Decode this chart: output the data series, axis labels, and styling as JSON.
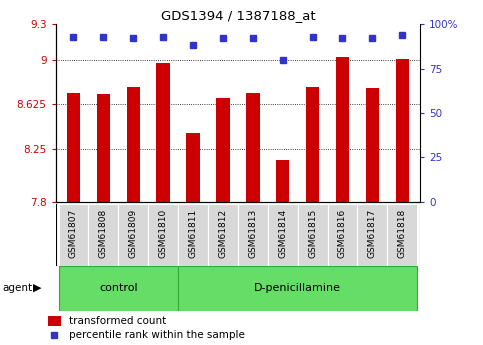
{
  "title": "GDS1394 / 1387188_at",
  "samples": [
    "GSM61807",
    "GSM61808",
    "GSM61809",
    "GSM61810",
    "GSM61811",
    "GSM61812",
    "GSM61813",
    "GSM61814",
    "GSM61815",
    "GSM61816",
    "GSM61817",
    "GSM61818"
  ],
  "bar_values": [
    8.72,
    8.71,
    8.77,
    8.97,
    8.38,
    8.68,
    8.72,
    8.15,
    8.77,
    9.02,
    8.76,
    9.01
  ],
  "percentile_values": [
    93,
    93,
    92,
    93,
    88,
    92,
    92,
    80,
    93,
    92,
    92,
    94
  ],
  "ylim_left": [
    7.8,
    9.3
  ],
  "ylim_right": [
    0,
    100
  ],
  "yticks_left": [
    7.8,
    8.25,
    8.625,
    9.0,
    9.3
  ],
  "ytick_labels_left": [
    "7.8",
    "8.25",
    "8.625",
    "9",
    "9.3"
  ],
  "yticks_right": [
    0,
    25,
    50,
    75,
    100
  ],
  "ytick_labels_right": [
    "0",
    "25",
    "50",
    "75",
    "100%"
  ],
  "bar_color": "#cc0000",
  "dot_color": "#3333cc",
  "grid_lines": [
    9.0,
    8.625,
    8.25
  ],
  "control_samples": 4,
  "bg_color": "#d8d8d8",
  "green_color": "#66dd66",
  "green_border": "#33aa33"
}
